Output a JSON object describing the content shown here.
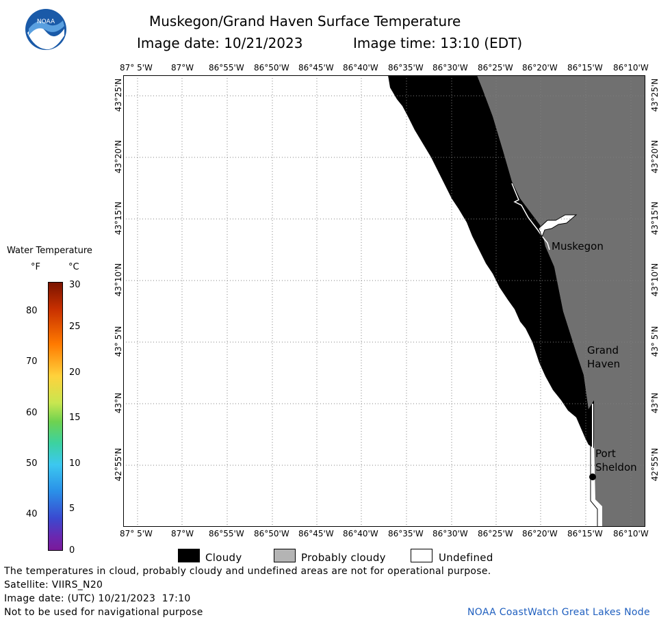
{
  "header": {
    "title": "Muskegon/Grand Haven Surface Temperature",
    "image_date": "Image date: 10/21/2023",
    "image_time": "Image time: 13:10 (EDT)",
    "logo_text": "NOAA"
  },
  "map": {
    "lon_labels": [
      "87° 5'W",
      "87°W",
      "86°55'W",
      "86°50'W",
      "86°45'W",
      "86°40'W",
      "86°35'W",
      "86°30'W",
      "86°25'W",
      "86°20'W",
      "86°15'W",
      "86°10'W"
    ],
    "lat_labels": [
      "43°25'N",
      "43°20'N",
      "43°15'N",
      "43°10'N",
      "43° 5'N",
      "43°N",
      "42°55'N"
    ],
    "places": {
      "muskegon": "Muskegon",
      "grand_haven_1": "Grand",
      "grand_haven_2": "Haven",
      "port_sheldon_1": "Port",
      "port_sheldon_2": "Sheldon"
    },
    "colors": {
      "cloudy": "#000000",
      "probably_cloudy": "#707070",
      "undefined": "#ffffff"
    }
  },
  "colorbar": {
    "title": "Water Temperature",
    "unit_f": "°F",
    "unit_c": "°C",
    "f_ticks": [
      "80",
      "70",
      "60",
      "50",
      "40"
    ],
    "c_ticks": [
      "30",
      "25",
      "20",
      "15",
      "10",
      "5",
      "0"
    ]
  },
  "legend": {
    "cloudy": "Cloudy",
    "probably_cloudy": "Probably cloudy",
    "undefined": "Undefined"
  },
  "footer": {
    "disclaimer": "The temperatures in cloud, probably cloudy and undefined areas are not for operational purpose.",
    "satellite": "Satellite: VIIRS_N20",
    "utc_date": "Image date: (UTC) 10/21/2023  17:10",
    "nav_warning": "Not to be used for navigational purpose",
    "credit": "NOAA CoastWatch Great Lakes Node"
  }
}
